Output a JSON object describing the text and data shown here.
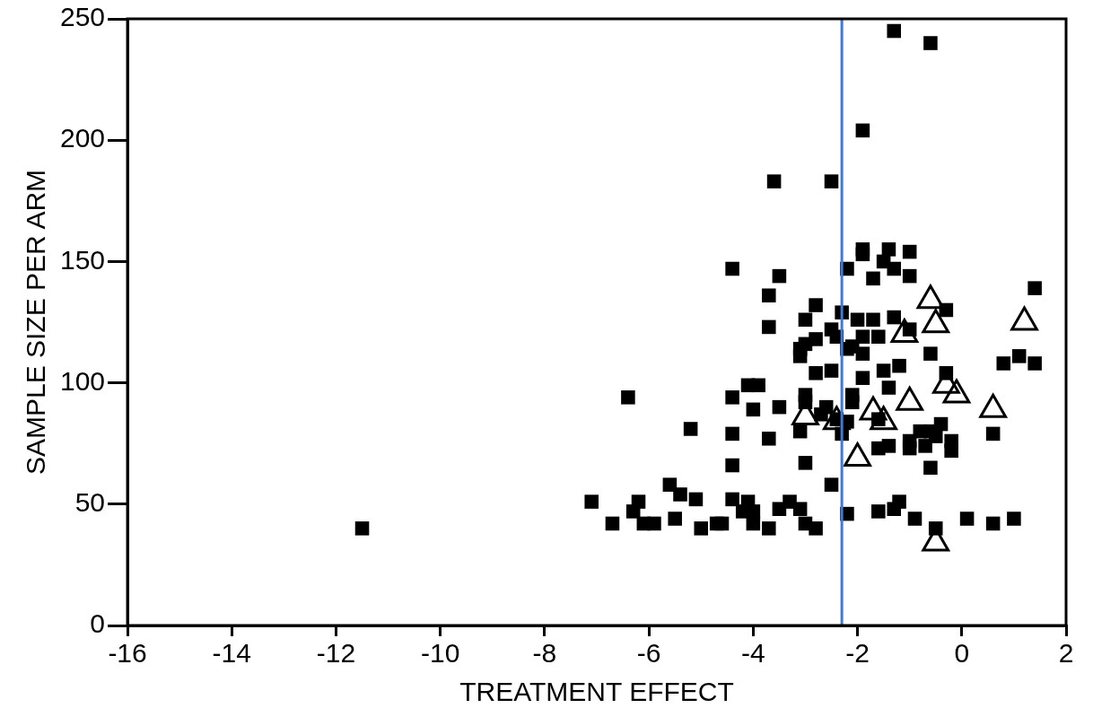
{
  "chart_data": {
    "type": "scatter",
    "xlabel": "TREATMENT EFFECT",
    "ylabel": "SAMPLE SIZE PER ARM",
    "xlim": [
      -16,
      2
    ],
    "xticks": [
      -16,
      -14,
      -12,
      -10,
      -8,
      -6,
      -4,
      -2,
      0,
      2
    ],
    "ylim": [
      0,
      250
    ],
    "yticks": [
      0,
      50,
      100,
      150,
      200,
      250
    ],
    "grid": false,
    "legend": false,
    "series": [
      {
        "color": "#000000",
        "marker": "square",
        "x": [
          -11.5,
          -6.4,
          -5.2,
          -5.6,
          -5.4,
          -5.1,
          -7.1,
          -6.2,
          -6.3,
          -6.7,
          -6.1,
          -5.9,
          -5.5,
          -5.0,
          -4.7,
          -3.7,
          -2.8,
          -3.0,
          -2.3,
          -3.7,
          -2.0,
          -1.7,
          -1.3,
          -1.0,
          -0.3,
          1.4,
          -2.5,
          -2.4,
          -2.8,
          -3.0,
          -3.1,
          -3.1,
          -1.9,
          -1.6,
          -2.2,
          -2.1,
          -1.9,
          -0.6,
          0.8,
          1.1,
          1.4,
          -2.8,
          -2.5,
          -1.9,
          -1.5,
          -1.2,
          -0.3,
          -1.4,
          -4.1,
          -3.9,
          -4.4,
          -3.0,
          -2.1,
          -4.0,
          -3.5,
          -3.0,
          -2.6,
          -2.7,
          -2.1,
          -2.4,
          -2.2,
          -1.6,
          -0.4,
          -3.1,
          -2.3,
          -0.8,
          -0.6,
          -0.5,
          -4.4,
          -3.7,
          0.6,
          -1.6,
          -1.4,
          -1.0,
          -1.0,
          -0.7,
          -0.2,
          -0.2,
          -4.4,
          -3.0,
          -0.6,
          -2.5,
          -4.4,
          -4.1,
          -4.2,
          -4.0,
          -4.0,
          -3.7,
          -4.6,
          -3.3,
          -3.5,
          -3.1,
          -3.0,
          -2.8,
          -2.2,
          -1.6,
          -1.3,
          -1.2,
          -0.9,
          -0.5,
          0.1,
          0.6,
          1.0,
          -1.3,
          -0.6,
          -1.9,
          -3.6,
          -2.5,
          -4.4,
          -3.5,
          -2.2,
          -1.9,
          -1.9,
          -1.4,
          -1.0,
          -1.5,
          -1.3,
          -1.7,
          -1.0
        ],
        "values": [
          40,
          94,
          81,
          58,
          54,
          52,
          51,
          51,
          47,
          42,
          42,
          42,
          44,
          40,
          42,
          136,
          132,
          126,
          129,
          123,
          126,
          126,
          127,
          122,
          130,
          139,
          122,
          119,
          118,
          116,
          114,
          111,
          119,
          119,
          114,
          115,
          112,
          112,
          108,
          111,
          108,
          104,
          105,
          102,
          105,
          107,
          104,
          98,
          99,
          99,
          94,
          95,
          95,
          89,
          90,
          92,
          90,
          87,
          92,
          85,
          84,
          85,
          83,
          80,
          79,
          80,
          80,
          78,
          79,
          77,
          79,
          73,
          74,
          76,
          73,
          74,
          76,
          72,
          66,
          67,
          65,
          58,
          52,
          51,
          47,
          47,
          42,
          40,
          42,
          51,
          48,
          48,
          42,
          40,
          46,
          47,
          48,
          51,
          44,
          40,
          44,
          42,
          44,
          245,
          240,
          204,
          183,
          183,
          147,
          144,
          147,
          155,
          153,
          155,
          154,
          150,
          147,
          143,
          144
        ]
      },
      {
        "color": "#000000",
        "marker": "triangle",
        "x": [
          -0.6,
          -0.5,
          -1.1,
          1.2,
          -0.3,
          -0.1,
          0.6,
          -3.0,
          -2.4,
          -1.7,
          -1.0,
          -1.5,
          -2.0,
          -0.5
        ],
        "values": [
          134,
          124,
          120,
          125,
          99,
          95,
          89,
          86,
          84,
          88,
          92,
          84,
          69,
          34
        ]
      }
    ],
    "ref_lines": [
      {
        "axis": "x",
        "value": -2.3,
        "color": "#3a7be0"
      }
    ]
  }
}
